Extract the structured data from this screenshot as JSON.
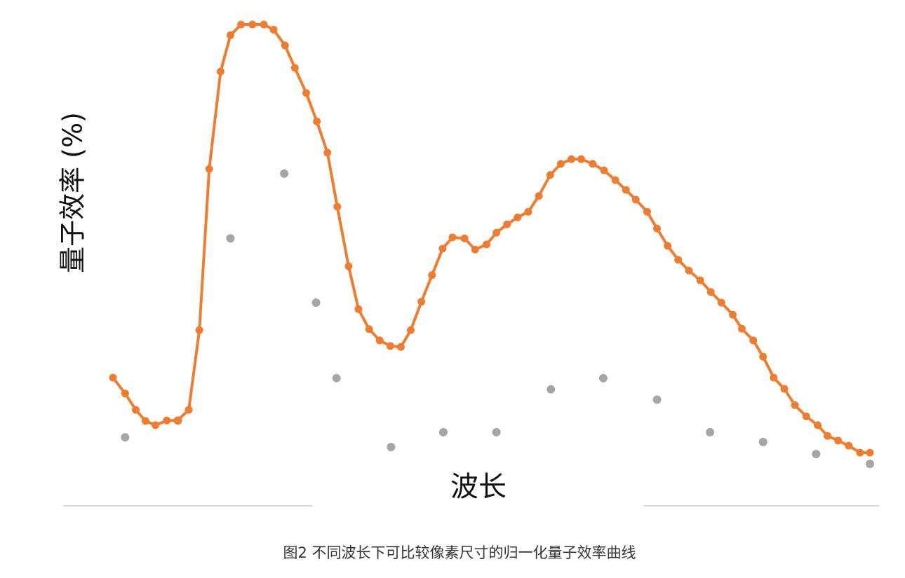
{
  "chart_data": {
    "type": "line",
    "title": "",
    "caption": "图2 不同波长下可比较像素尺寸的归一化量子效率曲线",
    "xlabel": "波长",
    "ylabel": "量子效率 (%)",
    "xlim": [
      0,
      100
    ],
    "ylim": [
      0,
      100
    ],
    "grid": false,
    "legend": "none",
    "series": [
      {
        "style": "line-with-markers",
        "color": "#EE7D31",
        "x": [
          0.1,
          1.7,
          3.1,
          4.4,
          5.7,
          7.2,
          8.6,
          10.1,
          11.5,
          12.8,
          14.3,
          15.6,
          17.0,
          18.5,
          20.0,
          21.3,
          22.8,
          24.1,
          25.6,
          27.0,
          28.4,
          29.7,
          31.2,
          32.5,
          33.9,
          35.3,
          36.7,
          38.1,
          39.4,
          40.8,
          42.2,
          43.6,
          44.9,
          46.5,
          47.9,
          49.4,
          50.7,
          52.1,
          53.5,
          54.9,
          56.3,
          57.8,
          59.2,
          60.6,
          61.9,
          63.4,
          64.9,
          66.4,
          67.8,
          69.1,
          70.6,
          71.9,
          73.3,
          74.7,
          76.1,
          77.6,
          79.0,
          80.4,
          81.9,
          83.1,
          84.6,
          85.9,
          87.3,
          88.7,
          90.1,
          91.6,
          93.1,
          94.4,
          95.8,
          97.2,
          98.7,
          100.0
        ],
        "y": [
          24.2,
          20.8,
          17.3,
          14.9,
          14.0,
          15.0,
          15.0,
          17.3,
          34.4,
          69.0,
          89.9,
          97.7,
          100,
          100,
          100,
          98.9,
          95.5,
          90.7,
          85.3,
          79.2,
          72.5,
          60.9,
          48.1,
          38.9,
          34.6,
          32.2,
          31.0,
          30.8,
          34.4,
          40.5,
          46.2,
          51.9,
          54.3,
          54.1,
          51.7,
          52.8,
          55.3,
          57.1,
          58.6,
          59.8,
          63.2,
          67.7,
          70.1,
          71.1,
          71.1,
          70.1,
          68.7,
          66.6,
          64.5,
          62.4,
          59.8,
          56.2,
          52.5,
          49.5,
          47.2,
          45.1,
          42.6,
          40.3,
          37.7,
          34.7,
          32.2,
          28.7,
          24.2,
          21.8,
          18.3,
          15.9,
          14.0,
          11.7,
          10.7,
          9.6,
          8.1,
          8.1
        ]
      },
      {
        "style": "scatter",
        "color": "#A6A6A6",
        "x": [
          1.7,
          8.7,
          15.6,
          22.7,
          26.9,
          29.6,
          36.8,
          43.7,
          50.7,
          57.9,
          64.8,
          71.9,
          78.9,
          85.9,
          92.9,
          100.0
        ],
        "y": [
          11.4,
          15.0,
          54.1,
          68.0,
          40.3,
          24.1,
          9.3,
          12.5,
          12.5,
          21.7,
          24.1,
          19.5,
          12.5,
          10.4,
          7.8,
          5.7
        ]
      }
    ],
    "axis_color": "#D9D9D9"
  }
}
